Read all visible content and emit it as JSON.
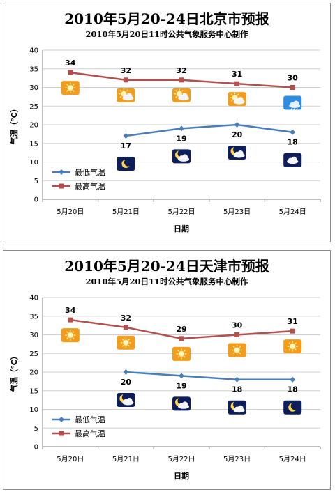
{
  "chart_data": [
    {
      "type": "line",
      "title": "2010年5月20-24日北京市预报",
      "subtitle": "2010年5月20日11时公共气象服务中心制作",
      "xlabel": "日期",
      "ylabel": "气温（℃）",
      "ylim": [
        0,
        40
      ],
      "yticks": [
        0,
        5,
        10,
        15,
        20,
        25,
        30,
        35,
        40
      ],
      "grid": true,
      "legend_placement": "bottom-left",
      "categories": [
        "5月20日",
        "5月21日",
        "5月22日",
        "5月23日",
        "5月24日"
      ],
      "series": [
        {
          "name": "最低气温",
          "color": "#4a7ebb",
          "marker": "diamond",
          "values": [
            null,
            17,
            19,
            20,
            18
          ]
        },
        {
          "name": "最高气温",
          "color": "#b54f4c",
          "marker": "square",
          "values": [
            34,
            32,
            32,
            31,
            30
          ]
        }
      ],
      "day_icons": [
        "sun-icon",
        "sun-cloud-icon",
        "sun-cloud-icon",
        "sun-cloud-icon",
        "rain-cloud-icon"
      ],
      "night_icons": [
        null,
        "moon-icon",
        "moon-cloud-icon",
        "moon-cloud-icon",
        "cloud-icon"
      ]
    },
    {
      "type": "line",
      "title": "2010年5月20-24日天津市预报",
      "subtitle": "2010年5月20日11时公共气象服务中心制作",
      "xlabel": "日期",
      "ylabel": "气温（℃）",
      "ylim": [
        0,
        40
      ],
      "yticks": [
        0,
        5,
        10,
        15,
        20,
        25,
        30,
        35,
        40
      ],
      "grid": true,
      "legend_placement": "bottom-left",
      "categories": [
        "5月20日",
        "5月21日",
        "5月22日",
        "5月23日",
        "5月24日"
      ],
      "series": [
        {
          "name": "最低气温",
          "color": "#4a7ebb",
          "marker": "diamond",
          "values": [
            null,
            20,
            19,
            18,
            18
          ]
        },
        {
          "name": "最高气温",
          "color": "#b54f4c",
          "marker": "square",
          "values": [
            34,
            32,
            29,
            30,
            31
          ]
        }
      ],
      "day_icons": [
        "sun-icon",
        "sun-icon",
        "sun-icon",
        "sun-icon",
        "sun-icon"
      ],
      "night_icons": [
        null,
        "moon-cloud-icon",
        "moon-cloud-icon",
        "moon-cloud-icon",
        "moon-icon"
      ]
    }
  ]
}
